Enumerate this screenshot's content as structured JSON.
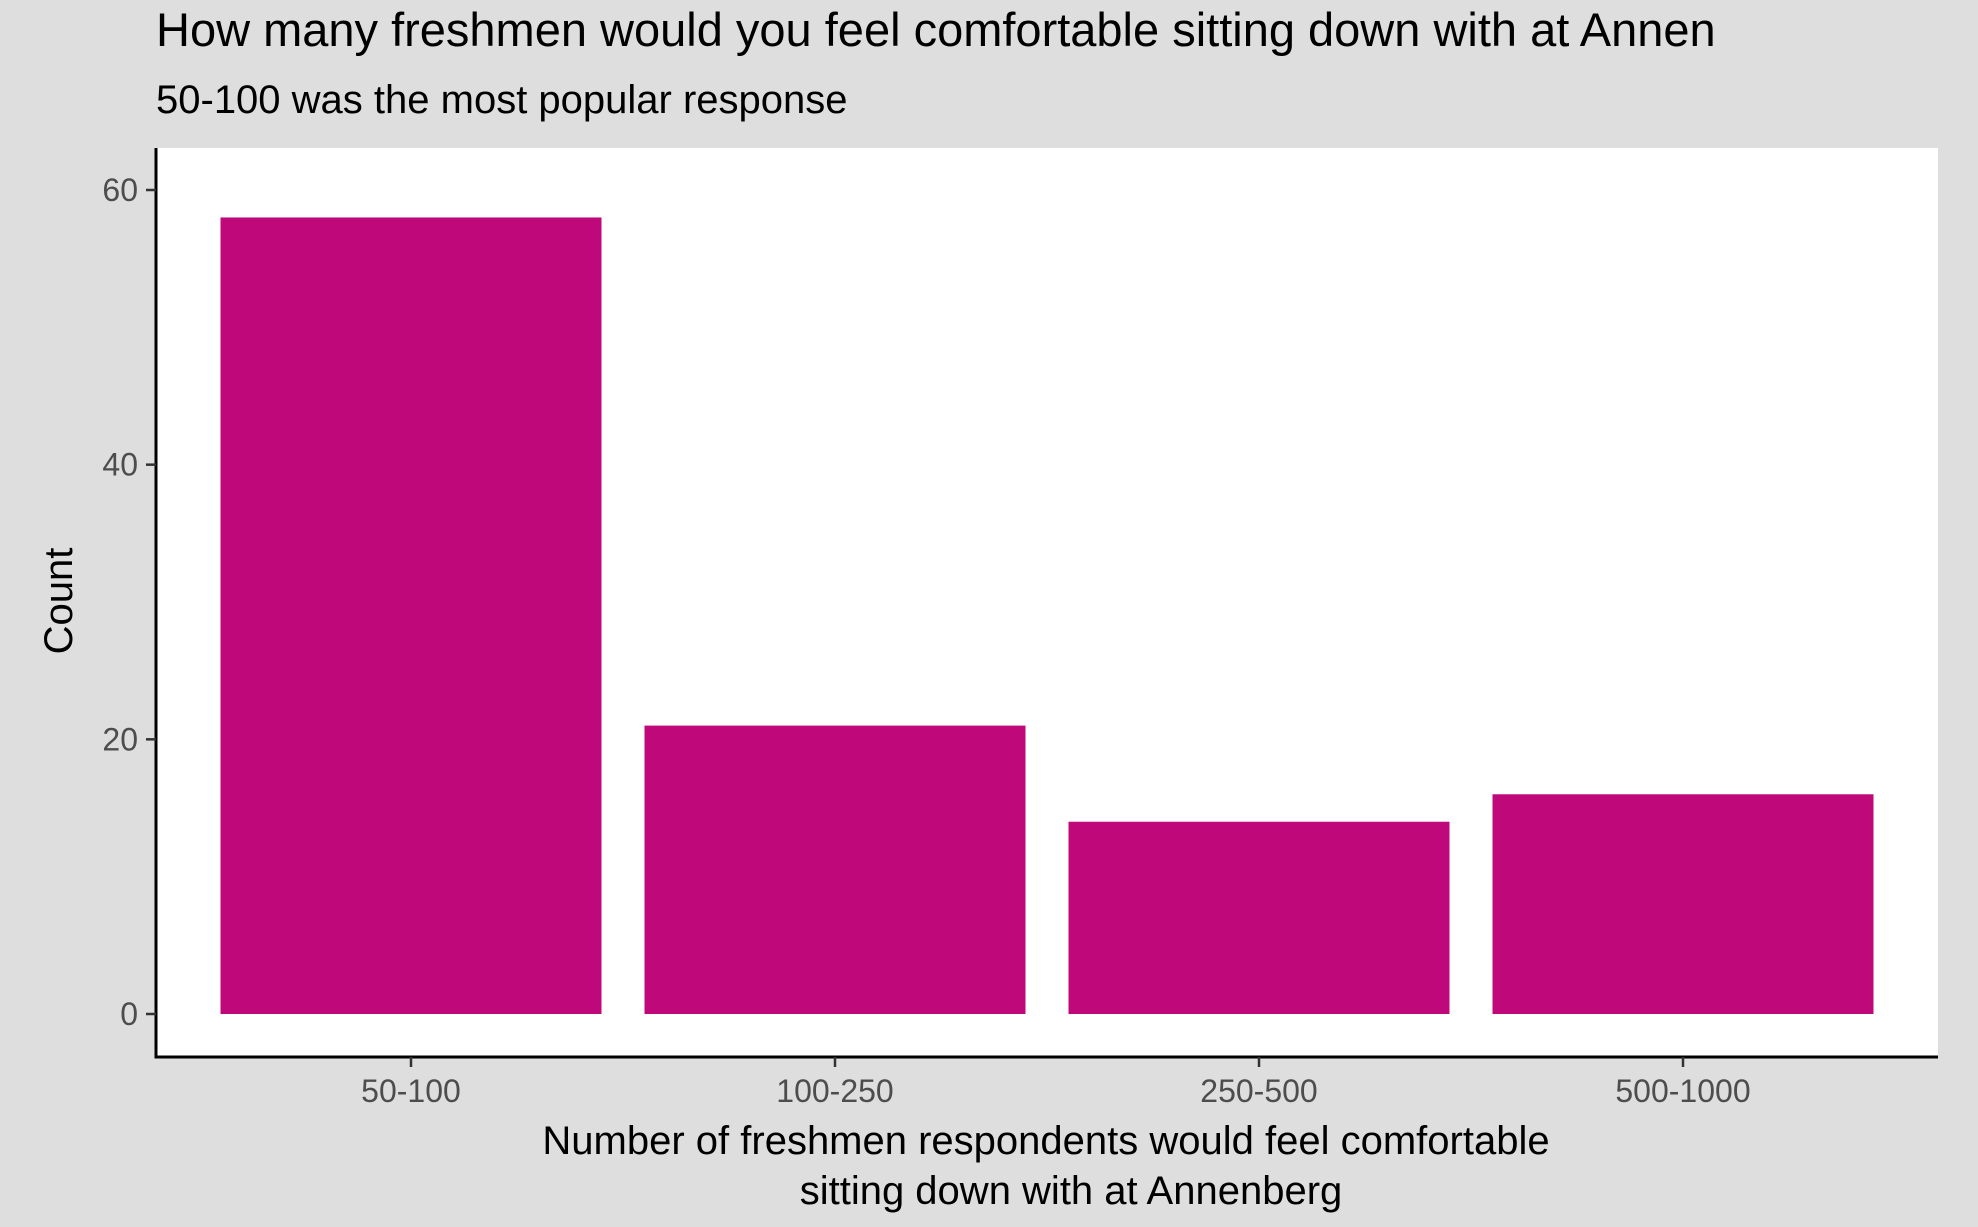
{
  "chart_data": {
    "type": "bar",
    "title": "How many freshmen would you feel comfortable sitting down with at Annen",
    "subtitle": "50-100 was the most popular response",
    "xlabel_lines": [
      "Number of freshmen respondents would feel comfortable",
      "sitting down with at Annenberg"
    ],
    "ylabel": "Count",
    "categories": [
      "50-100",
      "100-250",
      "250-500",
      "500-1000"
    ],
    "values": [
      58,
      21,
      14,
      16
    ],
    "ylim": [
      0,
      60
    ],
    "yticks": [
      0,
      20,
      40,
      60
    ],
    "grid": false,
    "legend": "none",
    "colors": {
      "bar": "#bf097b",
      "panel": "#ffffff",
      "background": "#dedede",
      "axis": "#000000",
      "tick_text": "#4d4d4d",
      "text": "#000000"
    }
  }
}
